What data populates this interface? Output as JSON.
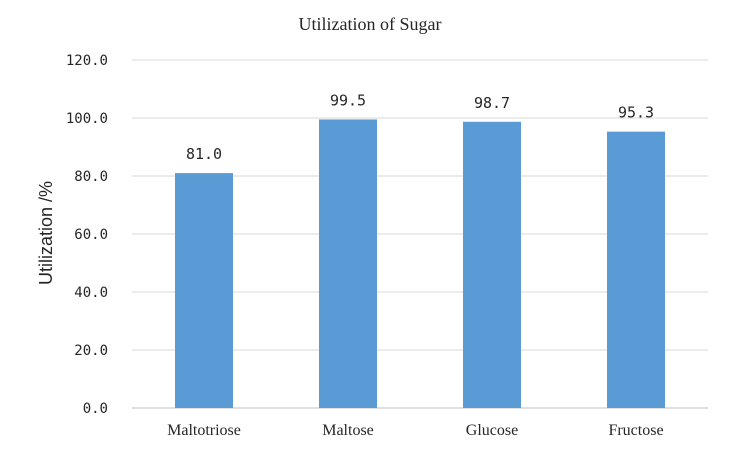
{
  "chart_data": {
    "type": "bar",
    "title": "Utilization of Sugar",
    "xlabel": "",
    "ylabel": "Utilization /%",
    "categories": [
      "Maltotriose",
      "Maltose",
      "Glucose",
      "Fructose"
    ],
    "values": [
      81.0,
      99.5,
      98.7,
      95.3
    ],
    "data_labels": [
      "81.0",
      "99.5",
      "98.7",
      "95.3"
    ],
    "ylim": [
      0,
      120
    ],
    "yticks": [
      0,
      20,
      40,
      60,
      80,
      100,
      120
    ],
    "ytick_labels": [
      "0.0",
      "20.0",
      "40.0",
      "60.0",
      "80.0",
      "100.0",
      "120.0"
    ],
    "grid": true,
    "legend": "none",
    "bar_color": "#5b9bd5",
    "grid_color": "#d9d9d9",
    "axis_color": "#bfbfbf"
  }
}
